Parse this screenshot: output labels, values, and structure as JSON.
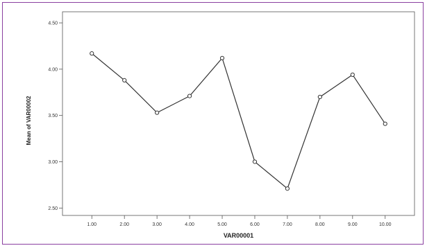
{
  "chart_data": {
    "type": "line",
    "title": "",
    "xlabel": "VAR00001",
    "ylabel": "Mean of VAR00002",
    "x": [
      1,
      2,
      3,
      4,
      5,
      6,
      7,
      8,
      9,
      10
    ],
    "x_tick_labels": [
      "1.00",
      "2.00",
      "3.00",
      "4.00",
      "5.00",
      "6.00",
      "7.00",
      "8.00",
      "9.00",
      "10.00"
    ],
    "series": [
      {
        "values": [
          4.17,
          3.88,
          3.53,
          3.71,
          4.12,
          3.0,
          2.71,
          3.7,
          3.94,
          3.41
        ]
      }
    ],
    "xlim": [
      0.1,
      10.9
    ],
    "ylim": [
      2.42,
      4.62
    ],
    "y_ticks": [
      2.5,
      3.0,
      3.5,
      4.0,
      4.5
    ],
    "y_tick_labels": [
      "2.50",
      "3.00",
      "3.50",
      "4.00",
      "4.50"
    ],
    "grid": false,
    "line_color": "#333333",
    "marker": "open-circle"
  }
}
